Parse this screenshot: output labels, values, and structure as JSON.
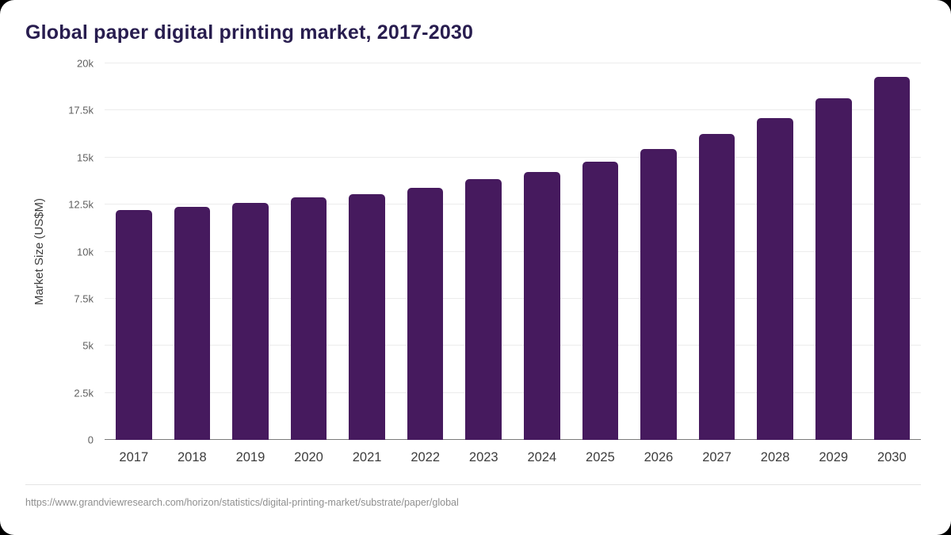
{
  "chart_data": {
    "type": "bar",
    "title": "Global paper digital printing market, 2017-2030",
    "categories": [
      "2017",
      "2018",
      "2019",
      "2020",
      "2021",
      "2022",
      "2023",
      "2024",
      "2025",
      "2026",
      "2027",
      "2028",
      "2029",
      "2030"
    ],
    "values": [
      12200,
      12400,
      12600,
      12900,
      13050,
      13400,
      13850,
      14250,
      14800,
      15450,
      16250,
      17100,
      18150,
      19300
    ],
    "xlabel": "",
    "ylabel": "Market Size (US$M)",
    "ylim": [
      0,
      20000
    ],
    "yticks": [
      0,
      2500,
      5000,
      7500,
      10000,
      12500,
      15000,
      17500,
      20000
    ],
    "ytick_labels": [
      "0",
      "2.5k",
      "5k",
      "7.5k",
      "10k",
      "12.5k",
      "15k",
      "17.5k",
      "20k"
    ],
    "grid": "horizontal",
    "legend": "none",
    "bar_color": "#461a5e"
  },
  "colors": {
    "bar": "#461a5e",
    "title_text": "#281d4f",
    "axis_text": "#3d3d3d",
    "tick_text": "#606060",
    "gridline": "#ececec",
    "baseline": "#7a7a7a",
    "footer_text": "#8f8f8f",
    "background": "#ffffff"
  },
  "footer": {
    "source_url": "https://www.grandviewresearch.com/horizon/statistics/digital-printing-market/substrate/paper/global"
  }
}
